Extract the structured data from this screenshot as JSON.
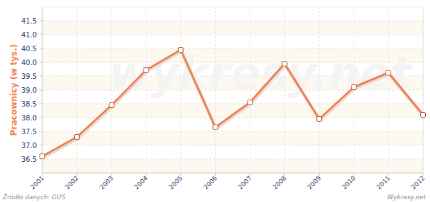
{
  "chart_data": {
    "type": "line",
    "y_label": "Pracownicy (w tys.)",
    "source": "Źródło danych:  GUS",
    "credit": "Wykresy.net",
    "watermark": "wykresy.net",
    "categories": [
      "2001",
      "2002",
      "2003",
      "2004",
      "2005",
      "2006",
      "2007",
      "2008",
      "2009",
      "2010",
      "2011",
      "2012"
    ],
    "values": [
      36.6,
      37.3,
      38.45,
      39.72,
      40.45,
      37.65,
      38.55,
      39.95,
      37.95,
      39.1,
      39.62,
      38.1
    ],
    "color": "#f07f4e",
    "marker": "square",
    "ylim": [
      36,
      42
    ],
    "yticks": [
      36.5,
      {
        "value": 37,
        "label": "37.0"
      },
      37.5,
      {
        "value": 38,
        "label": "38.0"
      },
      38.5,
      {
        "value": 39,
        "label": "39.0"
      },
      39.5,
      {
        "value": 40,
        "label": "40.0"
      },
      40.5,
      {
        "value": 41,
        "label": "41.0"
      },
      41.5
    ],
    "grid": true
  }
}
